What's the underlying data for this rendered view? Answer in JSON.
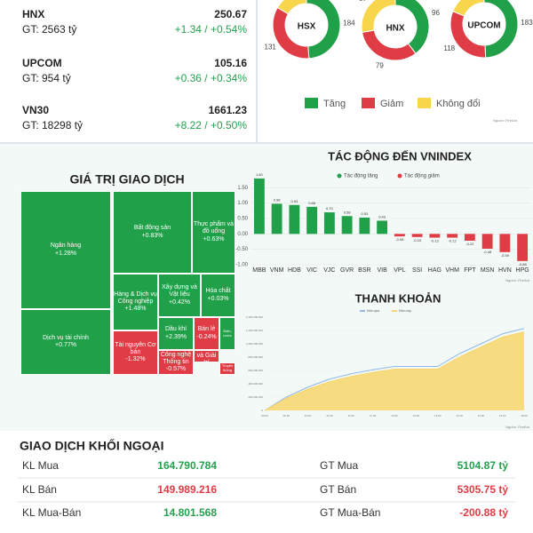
{
  "indices": [
    {
      "name": "HNX",
      "value": "250.67",
      "gt": "GT: 2563 tỷ",
      "change": "+1.34 / +0.54%"
    },
    {
      "name": "UPCOM",
      "value": "105.16",
      "gt": "GT: 954 tỷ",
      "change": "+0.36 / +0.34%"
    },
    {
      "name": "VN30",
      "value": "1661.23",
      "gt": "GT: 18298 tỷ",
      "change": "+8.22 / +0.50%"
    }
  ],
  "chart_data": [
    {
      "type": "donut",
      "categories": [
        "Tăng",
        "Giảm",
        "Không đổi"
      ],
      "colors": [
        "#1fa049",
        "#e03c45",
        "#f7d64b"
      ],
      "series": [
        {
          "name": "HSX",
          "values": [
            184,
            131,
            62
          ]
        },
        {
          "name": "HNX",
          "values": [
            96,
            79,
            67
          ]
        },
        {
          "name": "UPCOM",
          "values": [
            183,
            118,
            70
          ]
        }
      ],
      "source": "Nguồn: FireAnt"
    },
    {
      "type": "bar",
      "title": "TÁC ĐỘNG ĐẾN VNINDEX",
      "legend": [
        {
          "name": "Tác động tăng",
          "color": "#1fa049"
        },
        {
          "name": "Tác động giảm",
          "color": "#e03c45"
        }
      ],
      "categories": [
        "MBB",
        "VNM",
        "HDB",
        "VIC",
        "VJC",
        "GVR",
        "BSR",
        "VIB",
        "VPL",
        "SSI",
        "HAG",
        "VHM",
        "FPT",
        "MSN",
        "HVN",
        "HPG"
      ],
      "values": [
        1.8,
        0.98,
        0.94,
        0.88,
        0.7,
        0.58,
        0.53,
        0.43,
        -0.08,
        -0.1,
        -0.12,
        -0.12,
        -0.22,
        -0.48,
        -0.59,
        -0.88
      ],
      "value_labels": [
        "1.80",
        "0.98",
        "0.94",
        "0.88",
        "0.70",
        "0.58",
        "0.53",
        "0.43",
        "-0.08",
        "-0.10",
        "-0.12",
        "-0.12",
        "-0.22",
        "-0.48",
        "-0.59",
        "-0.88"
      ],
      "ylim": [
        -1,
        2
      ],
      "yticks": [
        {
          "value": 1.5,
          "label": "1.50"
        },
        {
          "value": 1,
          "label": "1.00"
        },
        {
          "value": 0.5,
          "label": "0.50"
        },
        {
          "value": 0,
          "label": "0.00"
        },
        {
          "value": -0.5,
          "label": "-0.50"
        },
        {
          "value": -1,
          "label": "-1.00"
        }
      ],
      "grid": true,
      "source": "Nguồn: FireAnt"
    },
    {
      "type": "area",
      "title": "THANH KHOẢN",
      "x": [
        "09:00",
        "09:30",
        "10:00",
        "10:30",
        "11:00",
        "11:30",
        "12:00",
        "12:30",
        "13:00",
        "13:30",
        "14:00",
        "14:30",
        "15:00"
      ],
      "series": [
        {
          "name": "Hôm qua",
          "color": "#8fb8e6",
          "values": [
            0,
            200000000,
            350000000,
            470000000,
            550000000,
            610000000,
            660000000,
            660000000,
            660000000,
            850000000,
            1000000000,
            1150000000,
            1230000000
          ]
        },
        {
          "name": "Hôm nay",
          "color": "#f6d66b",
          "values": [
            0,
            180000000,
            320000000,
            430000000,
            510000000,
            570000000,
            620000000,
            620000000,
            620000000,
            800000000,
            950000000,
            1100000000,
            1180000000
          ]
        }
      ],
      "ylim": [
        0,
        1400000000
      ],
      "yticks": [
        {
          "value": 0,
          "label": "0"
        },
        {
          "value": 200000000,
          "label": "200,000,000"
        },
        {
          "value": 400000000,
          "label": "400,000,000"
        },
        {
          "value": 600000000,
          "label": "600,000,000"
        },
        {
          "value": 800000000,
          "label": "800,000,000"
        },
        {
          "value": 1000000000,
          "label": "1,000,000,000"
        },
        {
          "value": 1200000000,
          "label": "1,200,000,000"
        },
        {
          "value": 1400000000,
          "label": "1,400,000,000"
        }
      ],
      "grid": true,
      "source": "Nguồn: FireAnt"
    }
  ],
  "treemap": {
    "title": "GIÁ TRỊ GIAO DỊCH",
    "nodes": [
      {
        "name": "Ngân hàng",
        "change": "+1.28%",
        "color": "#1fa049"
      },
      {
        "name": "Dịch vụ tài chính",
        "change": "+0.77%",
        "color": "#1fa049"
      },
      {
        "name": "Bất động sản",
        "change": "+0.83%",
        "color": "#1fa049"
      },
      {
        "name": "Thực phẩm và đồ uống",
        "change": "+0.63%",
        "color": "#1fa049"
      },
      {
        "name": "Hàng & Dịch vụ Công nghiệp",
        "change": "+1.48%",
        "color": "#1fa049"
      },
      {
        "name": "Xây dựng và Vật liệu",
        "change": "+0.42%",
        "color": "#1fa049"
      },
      {
        "name": "Hóa chất",
        "change": "+0.03%",
        "color": "#1fa049"
      },
      {
        "name": "Tài nguyên Cơ bản",
        "change": "-1.32%",
        "color": "#e03c45"
      },
      {
        "name": "Dầu khí",
        "change": "+2.39%",
        "color": "#1fa049"
      },
      {
        "name": "Bán lẻ",
        "change": "-0.24%",
        "color": "#e03c45"
      },
      {
        "name": "Điện, nước",
        "change": "",
        "color": "#1fa049"
      },
      {
        "name": "Công nghệ Thông tin",
        "change": "-0.57%",
        "color": "#e03c45"
      },
      {
        "name": "Du lịch và Giải trí",
        "change": "",
        "color": "#e03c45"
      },
      {
        "name": "Truyền thông",
        "change": "",
        "color": "#e03c45"
      }
    ]
  },
  "foreign": {
    "title": "GIAO DỊCH KHỐI NGOẠI",
    "rows": [
      [
        "KL Mua",
        "164.790.784",
        "GT Mua",
        "5104.87 tỷ"
      ],
      [
        "KL Bán",
        "149.989.216",
        "GT Bán",
        "5305.75 tỷ"
      ],
      [
        "KL Mua-Bán",
        "14.801.568",
        "GT Mua-Bán",
        "-200.88 tỷ"
      ]
    ]
  }
}
